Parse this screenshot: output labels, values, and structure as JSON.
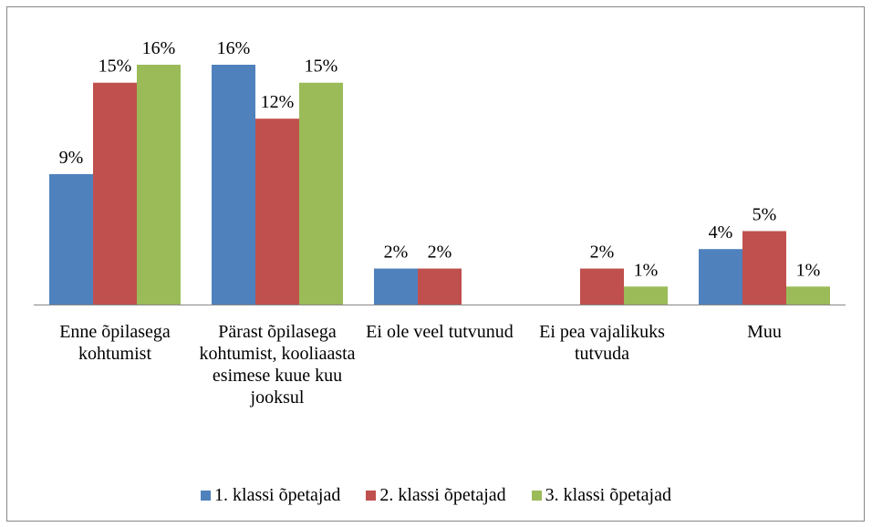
{
  "chart_data": {
    "type": "bar",
    "categories": [
      "Enne õpilasega kohtumist",
      "Pärast õpilasega kohtumist, kooliaasta esimese kuue kuu jooksul",
      "Ei ole veel tutvunud",
      "Ei pea vajalikuks tutvuda",
      "Muu"
    ],
    "series": [
      {
        "name": "1. klassi õpetajad",
        "color": "#4f81bd",
        "values": [
          8.7,
          16,
          2.4,
          null,
          3.7
        ],
        "value_labels": [
          "9%",
          "16%",
          "2%",
          null,
          "4%"
        ]
      },
      {
        "name": "2. klassi õpetajad",
        "color": "#c0504d",
        "values": [
          14.8,
          12.4,
          2.4,
          2.4,
          4.9
        ],
        "value_labels": [
          "15%",
          "12%",
          "2%",
          "2%",
          "5%"
        ]
      },
      {
        "name": "3. klassi õpetajad",
        "color": "#9bbb59",
        "values": [
          16,
          14.8,
          null,
          1.2,
          1.2
        ],
        "value_labels": [
          "16%",
          "15%",
          null,
          "1%",
          "1%"
        ]
      }
    ],
    "legend": "bottom"
  }
}
